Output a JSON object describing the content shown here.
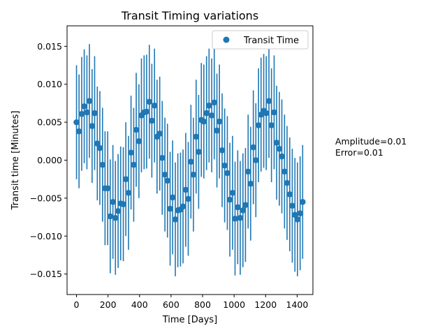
{
  "chart_data": {
    "type": "scatter",
    "title": "Transit Timing variations",
    "xlabel": "Time [Days]",
    "ylabel": "Transit time [Minutes]",
    "xlim": [
      -60,
      1500
    ],
    "ylim": [
      -0.0177,
      0.0177
    ],
    "xticks": [
      0,
      200,
      400,
      600,
      800,
      1000,
      1200,
      1400
    ],
    "yticks": [
      -0.015,
      -0.01,
      -0.005,
      0.0,
      0.005,
      0.01,
      0.015
    ],
    "xtick_labels": [
      "0",
      "200",
      "400",
      "600",
      "800",
      "1000",
      "1200",
      "1400"
    ],
    "ytick_labels": [
      "−0.015",
      "−0.010",
      "−0.005",
      "0.000",
      "0.005",
      "0.010",
      "0.015"
    ],
    "grid": false,
    "legend": {
      "position": "top-right",
      "label": "Transit Time"
    },
    "series": [
      {
        "name": "Transit Time",
        "color": "#1f77b4",
        "error": 0.0075,
        "x": [
          0,
          16,
          33,
          49,
          66,
          82,
          99,
          115,
          132,
          148,
          165,
          181,
          198,
          214,
          231,
          247,
          264,
          280,
          297,
          313,
          330,
          346,
          363,
          379,
          396,
          412,
          429,
          445,
          462,
          478,
          495,
          511,
          528,
          544,
          561,
          577,
          594,
          610,
          627,
          643,
          660,
          676,
          693,
          709,
          726,
          742,
          759,
          775,
          792,
          808,
          825,
          841,
          858,
          874,
          891,
          907,
          924,
          940,
          957,
          973,
          990,
          1006,
          1023,
          1039,
          1056,
          1072,
          1089,
          1105,
          1122,
          1138,
          1155,
          1171,
          1188,
          1204,
          1221,
          1237,
          1254,
          1270,
          1287,
          1303,
          1320,
          1336,
          1353,
          1369,
          1386,
          1402,
          1419,
          1435
        ],
        "y": [
          0.005,
          0.0038,
          0.0061,
          0.0071,
          0.0063,
          0.0078,
          0.0045,
          0.0062,
          0.0022,
          0.0016,
          -0.0006,
          -0.0037,
          -0.0037,
          -0.0074,
          -0.0055,
          -0.0076,
          -0.0067,
          -0.0057,
          -0.0058,
          -0.0025,
          -0.0043,
          0.001,
          -0.0006,
          0.004,
          0.0025,
          0.0059,
          0.0063,
          0.0064,
          0.0077,
          0.0052,
          0.0072,
          0.0031,
          0.0035,
          0.0003,
          -0.0019,
          -0.0027,
          -0.0064,
          -0.0049,
          -0.0078,
          -0.0066,
          -0.0065,
          -0.0061,
          -0.0039,
          -0.0051,
          -0.0002,
          -0.0019,
          0.0031,
          0.0011,
          0.0053,
          0.0051,
          0.0062,
          0.0072,
          0.0059,
          0.0076,
          0.0039,
          0.0051,
          0.0013,
          -0.0007,
          -0.0017,
          -0.0052,
          -0.0043,
          -0.0077,
          -0.0062,
          -0.0076,
          -0.0066,
          -0.0059,
          -0.0015,
          -0.0031,
          0.0017,
          0.0,
          0.0046,
          0.006,
          0.0065,
          0.0062,
          0.0078,
          0.0046,
          0.0063,
          0.0023,
          0.0015,
          0.0005,
          -0.0015,
          -0.003,
          -0.0045,
          -0.006,
          -0.0072,
          -0.0078,
          -0.007,
          -0.0055
        ]
      }
    ]
  },
  "side_text": [
    "Amplitude=0.01",
    "Error=0.01"
  ]
}
